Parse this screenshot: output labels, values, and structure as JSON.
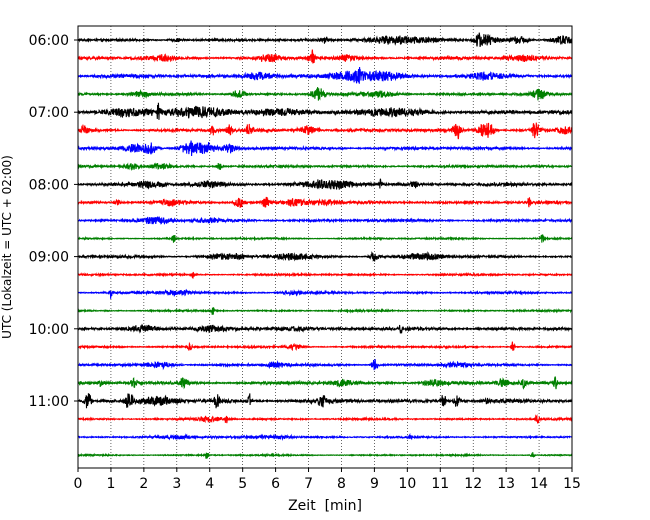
{
  "chart_data": {
    "type": "line",
    "title": "",
    "xlabel": "Zeit  [min]",
    "ylabel": "UTC (Lokalzeit = UTC + 02:00)",
    "xlim": [
      0,
      15
    ],
    "x_ticks": [
      0,
      1,
      2,
      3,
      4,
      5,
      6,
      7,
      8,
      9,
      10,
      11,
      12,
      13,
      14,
      15
    ],
    "x_tick_labels": [
      "0",
      "1",
      "2",
      "3",
      "4",
      "5",
      "6",
      "7",
      "8",
      "9",
      "10",
      "11",
      "12",
      "13",
      "14",
      "15"
    ],
    "vertical_grid": "dotted at every minute",
    "trace_start_utc": "06:00",
    "trace_interval_min": 15,
    "trace_count": 24,
    "y_tick_labels": [
      "06:00",
      "07:00",
      "08:00",
      "09:00",
      "10:00",
      "11:00"
    ],
    "color_cycle": [
      "#000000",
      "#ff0000",
      "#0000ff",
      "#008000"
    ],
    "traces": [
      {
        "start": "06:00",
        "color": "#000000",
        "background": 1.2,
        "bursts": [
          {
            "t": 3.0,
            "amp": 2,
            "width": 0.2
          },
          {
            "t": 7.5,
            "amp": 3,
            "width": 0.15
          },
          {
            "t": 9.8,
            "amp": 4,
            "width": 1.2
          },
          {
            "t": 12.2,
            "amp": 7,
            "width": 0.15
          },
          {
            "t": 12.5,
            "amp": 5,
            "width": 0.3
          },
          {
            "t": 13.4,
            "amp": 4,
            "width": 0.3
          },
          {
            "t": 14.7,
            "amp": 5,
            "width": 0.3
          }
        ]
      },
      {
        "start": "06:15",
        "color": "#ff0000",
        "background": 1.5,
        "bursts": [
          {
            "t": 2.5,
            "amp": 3,
            "width": 0.5
          },
          {
            "t": 5.8,
            "amp": 4,
            "width": 0.3
          },
          {
            "t": 7.1,
            "amp": 9,
            "width": 0.1
          },
          {
            "t": 8.2,
            "amp": 3,
            "width": 0.4
          },
          {
            "t": 13.5,
            "amp": 3,
            "width": 0.6
          }
        ]
      },
      {
        "start": "06:30",
        "color": "#0000ff",
        "background": 1.8,
        "bursts": [
          {
            "t": 5.5,
            "amp": 4,
            "width": 0.5
          },
          {
            "t": 8.2,
            "amp": 4,
            "width": 0.5
          },
          {
            "t": 8.5,
            "amp": 7,
            "width": 0.1
          },
          {
            "t": 9.2,
            "amp": 5,
            "width": 0.6
          },
          {
            "t": 12.3,
            "amp": 3,
            "width": 0.5
          }
        ]
      },
      {
        "start": "06:45",
        "color": "#008000",
        "background": 1.2,
        "bursts": [
          {
            "t": 1.9,
            "amp": 3,
            "width": 0.3
          },
          {
            "t": 4.9,
            "amp": 5,
            "width": 0.2
          },
          {
            "t": 7.3,
            "amp": 7,
            "width": 0.2
          },
          {
            "t": 9.2,
            "amp": 3,
            "width": 0.5
          },
          {
            "t": 14.0,
            "amp": 6,
            "width": 0.2
          }
        ]
      },
      {
        "start": "07:00",
        "color": "#000000",
        "background": 2.2,
        "bursts": [
          {
            "t": 1.5,
            "amp": 4,
            "width": 0.8
          },
          {
            "t": 2.45,
            "amp": 8,
            "width": 0.05
          },
          {
            "t": 3.5,
            "amp": 5,
            "width": 0.8
          },
          {
            "t": 6.0,
            "amp": 4,
            "width": 0.8
          },
          {
            "t": 9.5,
            "amp": 3,
            "width": 1.0
          }
        ]
      },
      {
        "start": "07:15",
        "color": "#ff0000",
        "background": 1.6,
        "bursts": [
          {
            "t": 0.2,
            "amp": 5,
            "width": 0.1
          },
          {
            "t": 4.1,
            "amp": 5,
            "width": 0.1
          },
          {
            "t": 4.6,
            "amp": 5,
            "width": 0.1
          },
          {
            "t": 5.2,
            "amp": 7,
            "width": 0.1
          },
          {
            "t": 7.0,
            "amp": 5,
            "width": 0.3
          },
          {
            "t": 11.5,
            "amp": 12,
            "width": 0.1
          },
          {
            "t": 12.4,
            "amp": 14,
            "width": 0.2
          },
          {
            "t": 13.9,
            "amp": 9,
            "width": 0.12
          },
          {
            "t": 14.8,
            "amp": 3,
            "width": 0.3
          }
        ]
      },
      {
        "start": "07:30",
        "color": "#0000ff",
        "background": 1.5,
        "bursts": [
          {
            "t": 1.7,
            "amp": 3,
            "width": 0.4
          },
          {
            "t": 2.2,
            "amp": 6,
            "width": 0.2
          },
          {
            "t": 3.4,
            "amp": 7,
            "width": 0.3
          },
          {
            "t": 3.9,
            "amp": 5,
            "width": 0.3
          },
          {
            "t": 4.6,
            "amp": 4,
            "width": 0.2
          }
        ]
      },
      {
        "start": "07:45",
        "color": "#008000",
        "background": 1.2,
        "bursts": [
          {
            "t": 1.6,
            "amp": 4,
            "width": 0.2
          },
          {
            "t": 2.5,
            "amp": 3,
            "width": 0.3
          },
          {
            "t": 4.3,
            "amp": 5,
            "width": 0.1
          }
        ]
      },
      {
        "start": "08:00",
        "color": "#000000",
        "background": 1.7,
        "bursts": [
          {
            "t": 2.2,
            "amp": 3,
            "width": 0.4
          },
          {
            "t": 4.0,
            "amp": 3,
            "width": 0.5
          },
          {
            "t": 7.7,
            "amp": 4,
            "width": 0.8
          },
          {
            "t": 9.2,
            "amp": 6,
            "width": 0.05
          },
          {
            "t": 10.2,
            "amp": 4,
            "width": 0.1
          }
        ]
      },
      {
        "start": "08:15",
        "color": "#ff0000",
        "background": 1.3,
        "bursts": [
          {
            "t": 1.2,
            "amp": 3,
            "width": 0.1
          },
          {
            "t": 2.8,
            "amp": 3,
            "width": 0.4
          },
          {
            "t": 4.9,
            "amp": 6,
            "width": 0.15
          },
          {
            "t": 5.7,
            "amp": 7,
            "width": 0.1
          },
          {
            "t": 6.6,
            "amp": 4,
            "width": 0.4
          },
          {
            "t": 7.5,
            "amp": 3,
            "width": 0.4
          },
          {
            "t": 13.7,
            "amp": 5,
            "width": 0.05
          }
        ]
      },
      {
        "start": "08:30",
        "color": "#0000ff",
        "background": 1.3,
        "bursts": [
          {
            "t": 2.4,
            "amp": 4,
            "width": 0.5
          },
          {
            "t": 4.0,
            "amp": 2,
            "width": 0.4
          }
        ]
      },
      {
        "start": "08:45",
        "color": "#008000",
        "background": 0.8,
        "bursts": [
          {
            "t": 2.9,
            "amp": 6,
            "width": 0.05
          },
          {
            "t": 14.1,
            "amp": 6,
            "width": 0.05
          }
        ]
      },
      {
        "start": "09:00",
        "color": "#000000",
        "background": 1.3,
        "bursts": [
          {
            "t": 4.5,
            "amp": 3,
            "width": 0.6
          },
          {
            "t": 6.5,
            "amp": 3,
            "width": 0.6
          },
          {
            "t": 9.0,
            "amp": 5,
            "width": 0.15
          },
          {
            "t": 10.5,
            "amp": 3,
            "width": 0.6
          }
        ]
      },
      {
        "start": "09:15",
        "color": "#ff0000",
        "background": 0.9,
        "bursts": [
          {
            "t": 3.5,
            "amp": 5,
            "width": 0.05
          }
        ]
      },
      {
        "start": "09:30",
        "color": "#0000ff",
        "background": 1.0,
        "bursts": [
          {
            "t": 1.0,
            "amp": 6,
            "width": 0.05
          },
          {
            "t": 3.0,
            "amp": 3,
            "width": 0.5
          },
          {
            "t": 6.5,
            "amp": 2,
            "width": 0.3
          }
        ]
      },
      {
        "start": "09:45",
        "color": "#008000",
        "background": 0.8,
        "bursts": [
          {
            "t": 4.1,
            "amp": 5,
            "width": 0.05
          }
        ]
      },
      {
        "start": "10:00",
        "color": "#000000",
        "background": 1.6,
        "bursts": [
          {
            "t": 2.0,
            "amp": 3,
            "width": 0.5
          },
          {
            "t": 4.0,
            "amp": 3,
            "width": 0.4
          },
          {
            "t": 6.5,
            "amp": 2,
            "width": 0.6
          },
          {
            "t": 9.8,
            "amp": 4,
            "width": 0.05
          }
        ]
      },
      {
        "start": "10:15",
        "color": "#ff0000",
        "background": 1.0,
        "bursts": [
          {
            "t": 3.4,
            "amp": 6,
            "width": 0.05
          },
          {
            "t": 6.6,
            "amp": 3,
            "width": 0.2
          },
          {
            "t": 13.2,
            "amp": 6,
            "width": 0.05
          }
        ]
      },
      {
        "start": "10:30",
        "color": "#0000ff",
        "background": 1.2,
        "bursts": [
          {
            "t": 2.5,
            "amp": 3,
            "width": 0.4
          },
          {
            "t": 6.0,
            "amp": 3,
            "width": 0.3
          },
          {
            "t": 9.0,
            "amp": 7,
            "width": 0.1
          },
          {
            "t": 11.5,
            "amp": 3,
            "width": 0.4
          }
        ]
      },
      {
        "start": "10:45",
        "color": "#008000",
        "background": 1.6,
        "bursts": [
          {
            "t": 0.7,
            "amp": 4,
            "width": 0.05
          },
          {
            "t": 1.7,
            "amp": 5,
            "width": 0.1
          },
          {
            "t": 3.2,
            "amp": 6,
            "width": 0.1
          },
          {
            "t": 8.0,
            "amp": 3,
            "width": 0.3
          },
          {
            "t": 10.8,
            "amp": 3,
            "width": 0.4
          },
          {
            "t": 12.9,
            "amp": 4,
            "width": 0.2
          },
          {
            "t": 13.5,
            "amp": 6,
            "width": 0.1
          },
          {
            "t": 14.5,
            "amp": 8,
            "width": 0.05
          }
        ]
      },
      {
        "start": "11:00",
        "color": "#000000",
        "background": 2.0,
        "bursts": [
          {
            "t": 0.3,
            "amp": 11,
            "width": 0.1
          },
          {
            "t": 1.55,
            "amp": 11,
            "width": 0.1
          },
          {
            "t": 2.5,
            "amp": 4,
            "width": 0.5
          },
          {
            "t": 4.2,
            "amp": 8,
            "width": 0.1
          },
          {
            "t": 5.2,
            "amp": 9,
            "width": 0.05
          },
          {
            "t": 7.4,
            "amp": 7,
            "width": 0.1
          },
          {
            "t": 11.1,
            "amp": 6,
            "width": 0.1
          },
          {
            "t": 11.5,
            "amp": 6,
            "width": 0.1
          },
          {
            "t": 12.4,
            "amp": 3,
            "width": 0.05
          }
        ]
      },
      {
        "start": "11:15",
        "color": "#ff0000",
        "background": 0.9,
        "bursts": [
          {
            "t": 4.0,
            "amp": 3,
            "width": 0.4
          },
          {
            "t": 4.5,
            "amp": 5,
            "width": 0.05
          },
          {
            "t": 13.95,
            "amp": 6,
            "width": 0.05
          }
        ]
      },
      {
        "start": "11:30",
        "color": "#0000ff",
        "background": 0.9,
        "bursts": [
          {
            "t": 3.0,
            "amp": 2,
            "width": 0.6
          },
          {
            "t": 6.0,
            "amp": 2,
            "width": 0.6
          },
          {
            "t": 10.1,
            "amp": 3,
            "width": 0.05
          }
        ]
      },
      {
        "start": "11:45",
        "color": "#008000",
        "background": 0.7,
        "bursts": [
          {
            "t": 3.9,
            "amp": 5,
            "width": 0.05
          },
          {
            "t": 13.8,
            "amp": 4,
            "width": 0.05
          }
        ]
      }
    ]
  }
}
